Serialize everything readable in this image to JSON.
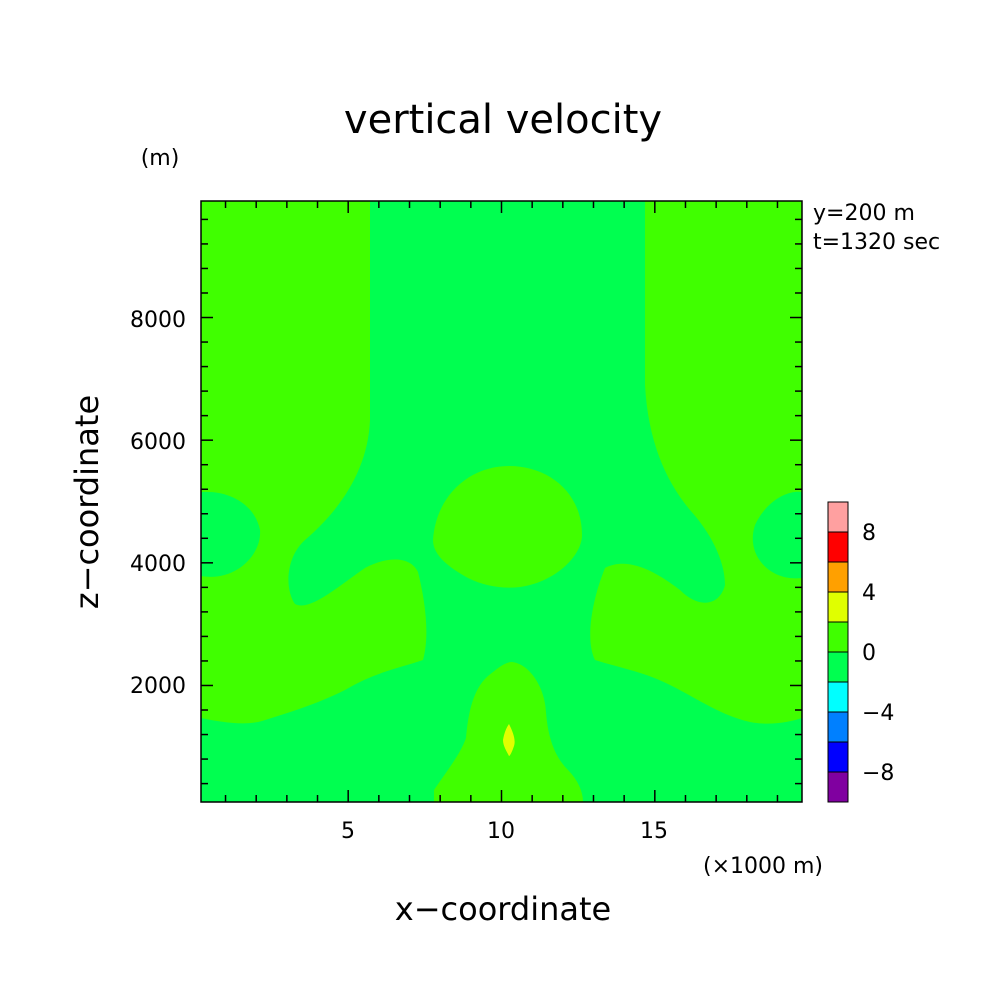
{
  "chart_data": {
    "type": "heatmap",
    "title": "vertical velocity",
    "xlabel": "x−coordinate",
    "ylabel": "z−coordinate",
    "x_unit": "(×1000 m)",
    "y_unit": "(m)",
    "annotations": [
      "y=200 m",
      "t=1320 sec"
    ],
    "xlim": [
      0.2,
      19.8
    ],
    "ylim": [
      100,
      9900
    ],
    "x_ticks": [
      5,
      10,
      15
    ],
    "x_tick_labels": [
      "5",
      "10",
      "15"
    ],
    "y_ticks": [
      2000,
      4000,
      6000,
      8000
    ],
    "y_tick_labels": [
      "2000",
      "4000",
      "6000",
      "8000"
    ],
    "colorbar": {
      "levels": [
        -10,
        -8,
        -6,
        -4,
        -2,
        0,
        2,
        4,
        6,
        8,
        10
      ],
      "colors": [
        "#8000a0",
        "#0000ff",
        "#0080ff",
        "#00ffff",
        "#00ff50",
        "#40ff00",
        "#e0ff00",
        "#ffa000",
        "#ff0000",
        "#ffa0a0"
      ],
      "tick_values": [
        8,
        4,
        0,
        -4,
        -8
      ],
      "tick_labels": [
        "8",
        "4",
        "0",
        "−4",
        "−8"
      ]
    },
    "background_level": "-2 to 0",
    "background_color": "#00ff50",
    "regions": [
      {
        "level": "0 to 2",
        "color": "#40ff00",
        "description": "left upper column and lower-left lobe"
      },
      {
        "level": "0 to 2",
        "color": "#40ff00",
        "description": "right upper column and lower-right lobe"
      },
      {
        "level": "-2 to 0",
        "color": "#00ff50",
        "description": "left edge bubble near z=4400"
      },
      {
        "level": "-2 to 0",
        "color": "#00ff50",
        "description": "right edge bubble near z=4400"
      },
      {
        "level": "0 to 2",
        "color": "#40ff00",
        "description": "central dome near x=10, z=4300-5600"
      },
      {
        "level": "0 to 2",
        "color": "#40ff00",
        "description": "bottom central plume near x=10, z=100-2400"
      },
      {
        "level": "2 to 4",
        "color": "#e0ff00",
        "description": "small core near x=10.2, z=1000"
      }
    ],
    "grid": false
  }
}
